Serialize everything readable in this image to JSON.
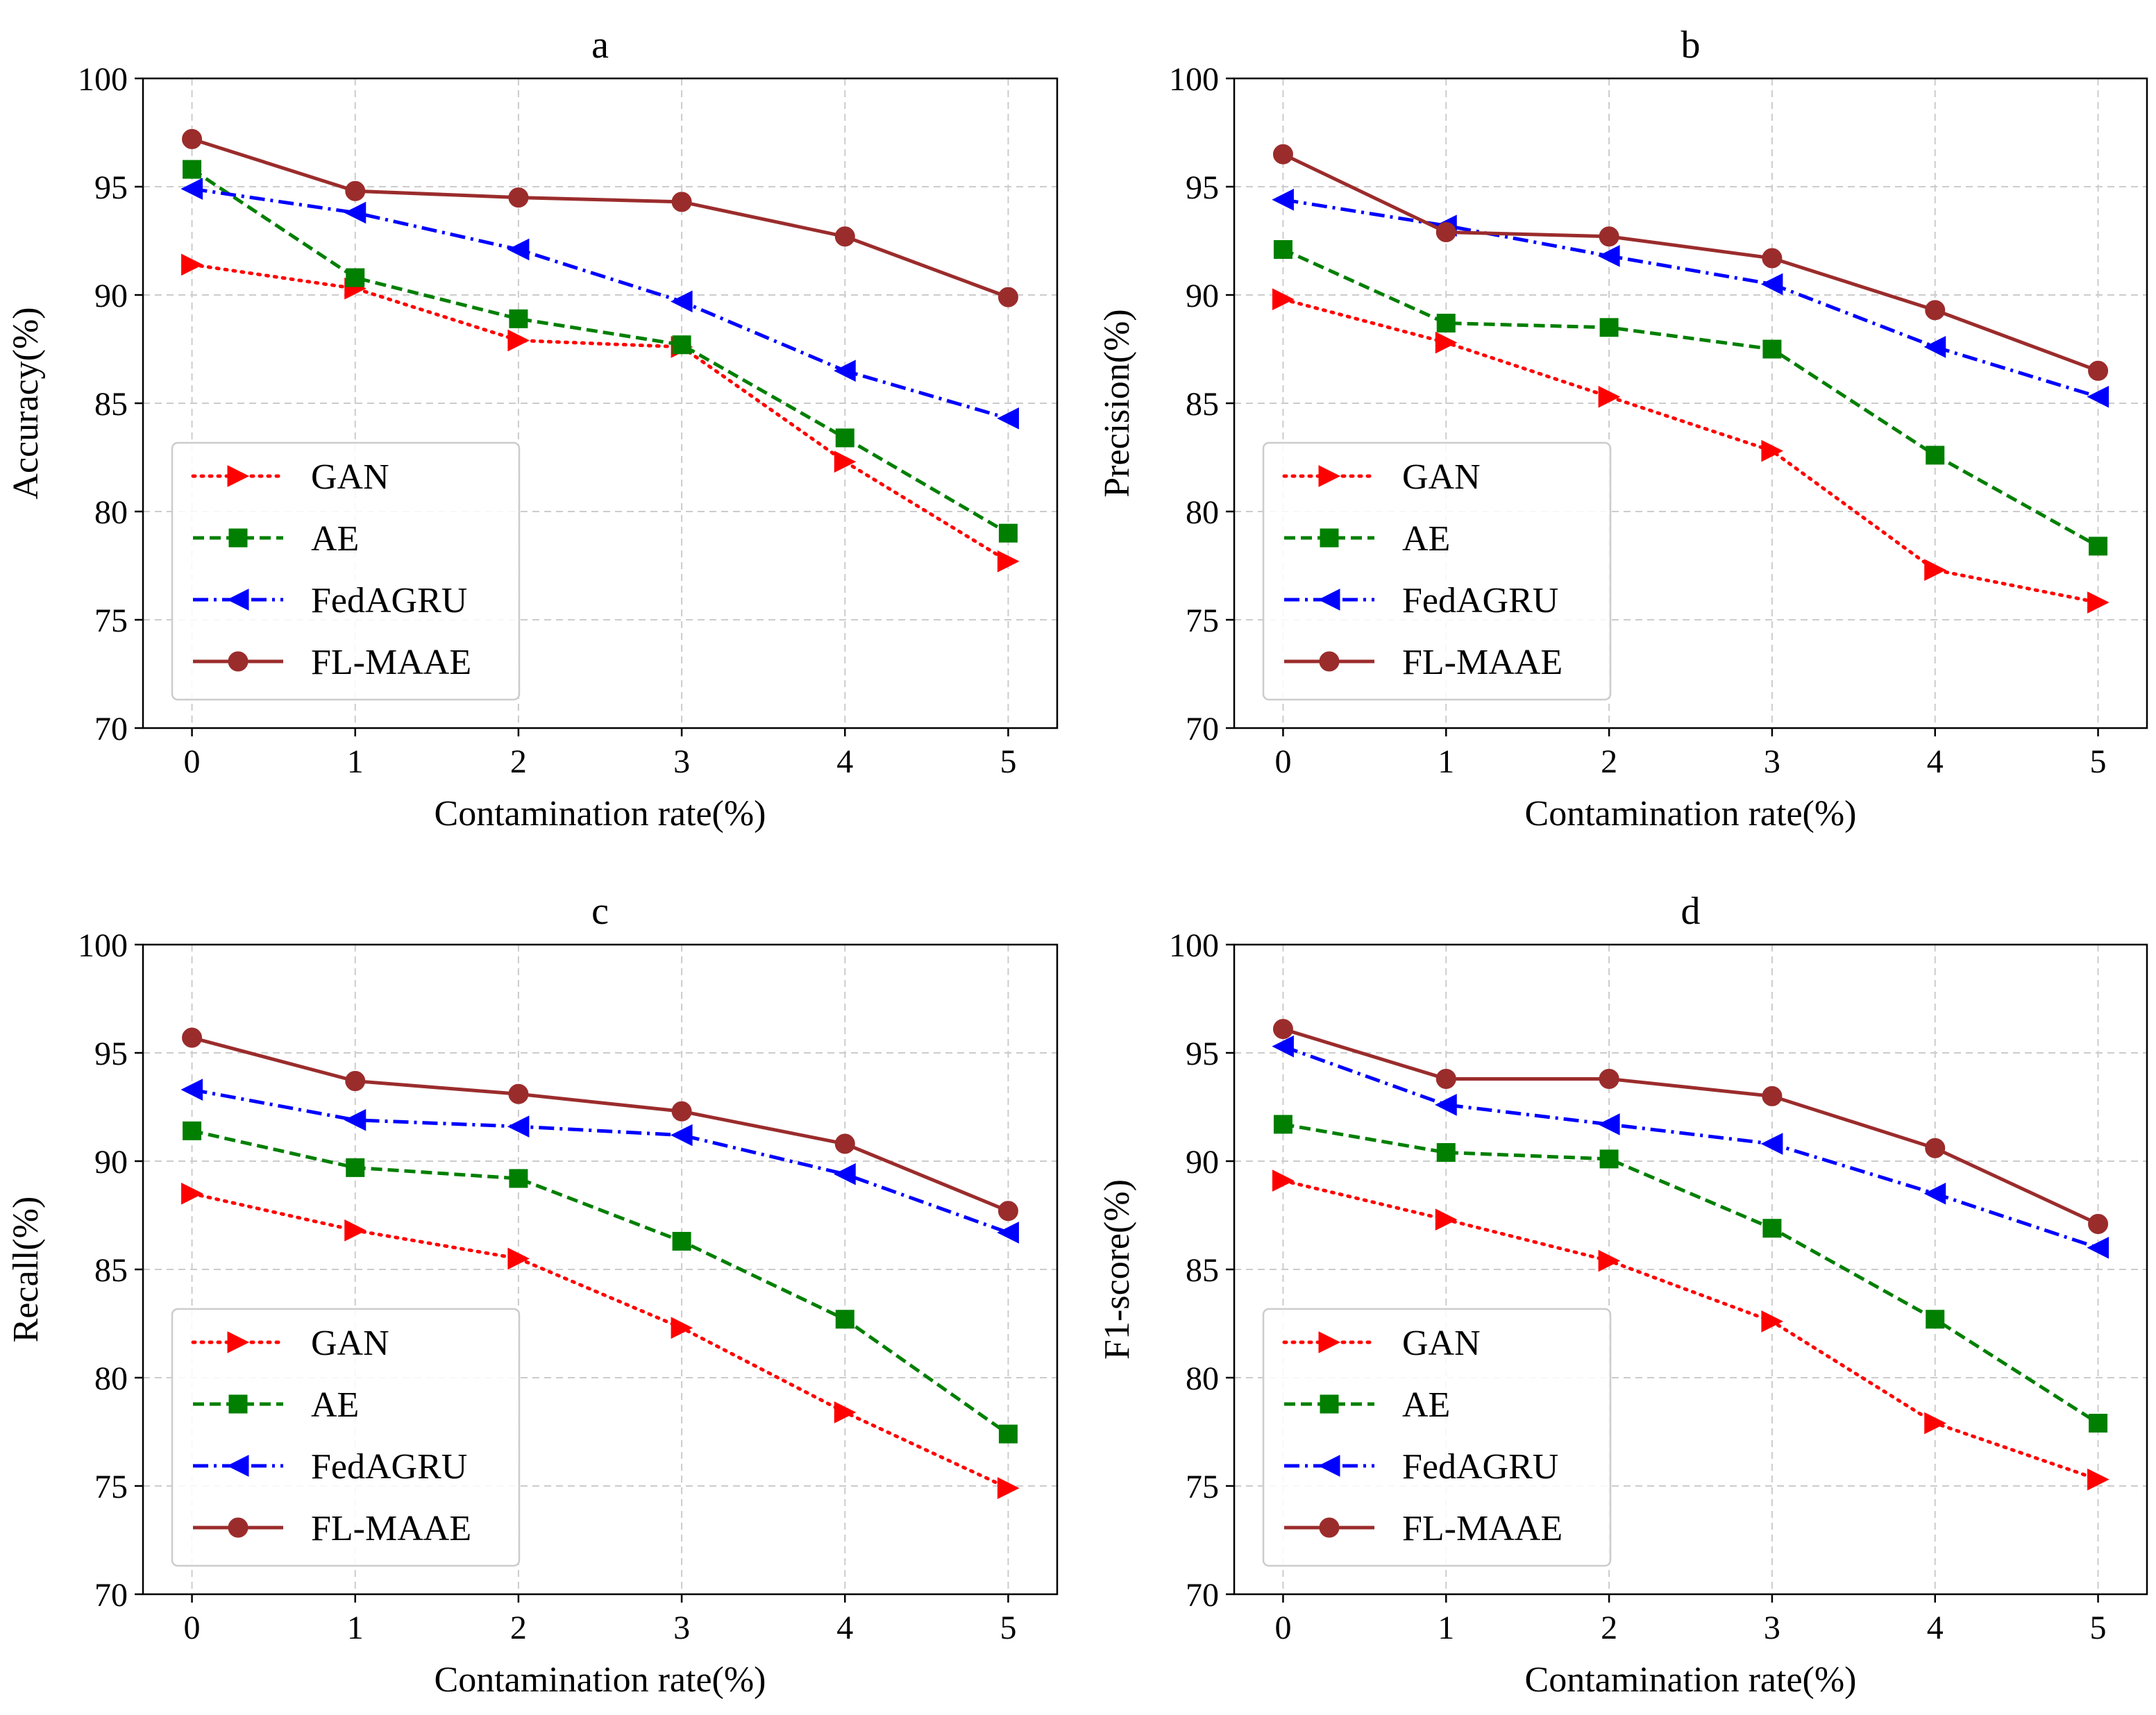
{
  "colors": {
    "GAN": "#ff0000",
    "AE": "#007f00",
    "FedAGRU": "#0000ff",
    "FL-MAAE": "#9b2c2c",
    "grid": "#cccccc",
    "axes": "#000000"
  },
  "chart_data": [
    {
      "type": "line",
      "title": "a",
      "xlabel": "Contamination rate(%)",
      "ylabel": "Accuracy(%)",
      "x": [
        0,
        1,
        2,
        3,
        4,
        5
      ],
      "xlim": [
        -0.3,
        5.3
      ],
      "ylim": [
        70,
        100
      ],
      "yticks": [
        70,
        75,
        80,
        85,
        90,
        95,
        100
      ],
      "grid": true,
      "legend": "lower-left",
      "series": [
        {
          "name": "GAN",
          "marker": "triangle-right",
          "linestyle": "dotted",
          "values": [
            91.4,
            90.3,
            87.9,
            87.6,
            82.3,
            77.7
          ]
        },
        {
          "name": "AE",
          "marker": "square",
          "linestyle": "dashed",
          "values": [
            95.8,
            90.8,
            88.9,
            87.7,
            83.4,
            79.0
          ]
        },
        {
          "name": "FedAGRU",
          "marker": "triangle-left",
          "linestyle": "dashdot",
          "values": [
            94.9,
            93.8,
            92.1,
            89.7,
            86.5,
            84.3
          ]
        },
        {
          "name": "FL-MAAE",
          "marker": "circle",
          "linestyle": "solid",
          "values": [
            97.2,
            94.8,
            94.5,
            94.3,
            92.7,
            89.9
          ]
        }
      ]
    },
    {
      "type": "line",
      "title": "b",
      "xlabel": "Contamination rate(%)",
      "ylabel": "Precision(%)",
      "x": [
        0,
        1,
        2,
        3,
        4,
        5
      ],
      "xlim": [
        -0.3,
        5.3
      ],
      "ylim": [
        70,
        100
      ],
      "yticks": [
        70,
        75,
        80,
        85,
        90,
        95,
        100
      ],
      "grid": true,
      "legend": "lower-left",
      "series": [
        {
          "name": "GAN",
          "marker": "triangle-right",
          "linestyle": "dotted",
          "values": [
            89.8,
            87.8,
            85.3,
            82.8,
            77.3,
            75.8
          ]
        },
        {
          "name": "AE",
          "marker": "square",
          "linestyle": "dashed",
          "values": [
            92.1,
            88.7,
            88.5,
            87.5,
            82.6,
            78.4
          ]
        },
        {
          "name": "FedAGRU",
          "marker": "triangle-left",
          "linestyle": "dashdot",
          "values": [
            94.4,
            93.2,
            91.8,
            90.5,
            87.6,
            85.3
          ]
        },
        {
          "name": "FL-MAAE",
          "marker": "circle",
          "linestyle": "solid",
          "values": [
            96.5,
            92.9,
            92.7,
            91.7,
            89.3,
            86.5
          ]
        }
      ]
    },
    {
      "type": "line",
      "title": "c",
      "xlabel": "Contamination rate(%)",
      "ylabel": "Recall(%)",
      "x": [
        0,
        1,
        2,
        3,
        4,
        5
      ],
      "xlim": [
        -0.3,
        5.3
      ],
      "ylim": [
        70,
        100
      ],
      "yticks": [
        70,
        75,
        80,
        85,
        90,
        95,
        100
      ],
      "grid": true,
      "legend": "lower-left",
      "series": [
        {
          "name": "GAN",
          "marker": "triangle-right",
          "linestyle": "dotted",
          "values": [
            88.5,
            86.8,
            85.5,
            82.3,
            78.4,
            74.9
          ]
        },
        {
          "name": "AE",
          "marker": "square",
          "linestyle": "dashed",
          "values": [
            91.4,
            89.7,
            89.2,
            86.3,
            82.7,
            77.4
          ]
        },
        {
          "name": "FedAGRU",
          "marker": "triangle-left",
          "linestyle": "dashdot",
          "values": [
            93.3,
            91.9,
            91.6,
            91.2,
            89.4,
            86.7
          ]
        },
        {
          "name": "FL-MAAE",
          "marker": "circle",
          "linestyle": "solid",
          "values": [
            95.7,
            93.7,
            93.1,
            92.3,
            90.8,
            87.7
          ]
        }
      ]
    },
    {
      "type": "line",
      "title": "d",
      "xlabel": "Contamination rate(%)",
      "ylabel": "F1-score(%)",
      "x": [
        0,
        1,
        2,
        3,
        4,
        5
      ],
      "xlim": [
        -0.3,
        5.3
      ],
      "ylim": [
        70,
        100
      ],
      "yticks": [
        70,
        75,
        80,
        85,
        90,
        95,
        100
      ],
      "grid": true,
      "legend": "lower-left",
      "series": [
        {
          "name": "GAN",
          "marker": "triangle-right",
          "linestyle": "dotted",
          "values": [
            89.1,
            87.3,
            85.4,
            82.6,
            77.9,
            75.3
          ]
        },
        {
          "name": "AE",
          "marker": "square",
          "linestyle": "dashed",
          "values": [
            91.7,
            90.4,
            90.1,
            86.9,
            82.7,
            77.9
          ]
        },
        {
          "name": "FedAGRU",
          "marker": "triangle-left",
          "linestyle": "dashdot",
          "values": [
            95.3,
            92.6,
            91.7,
            90.8,
            88.5,
            86.0
          ]
        },
        {
          "name": "FL-MAAE",
          "marker": "circle",
          "linestyle": "solid",
          "values": [
            96.1,
            93.8,
            93.8,
            93.0,
            90.6,
            87.1
          ]
        }
      ]
    }
  ]
}
